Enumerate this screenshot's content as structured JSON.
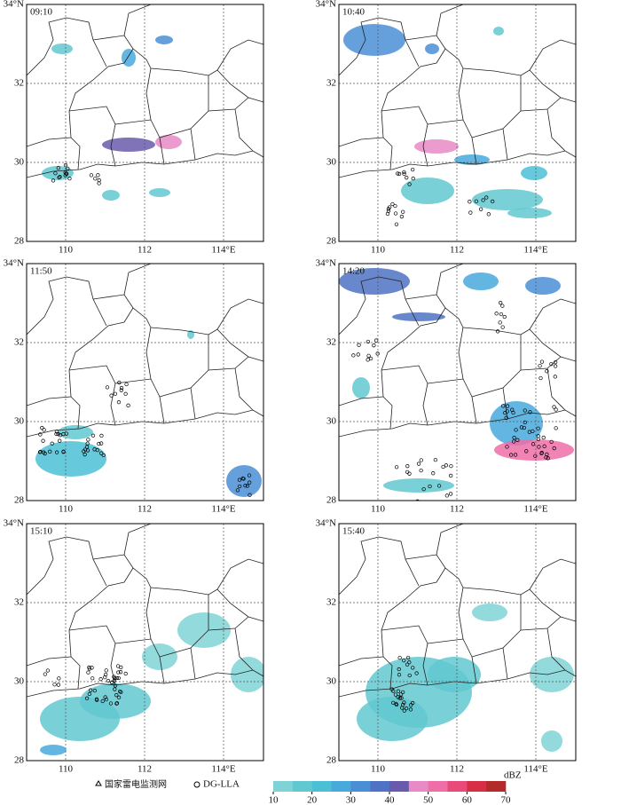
{
  "panels": [
    {
      "time": "09:10"
    },
    {
      "time": "10:40"
    },
    {
      "time": "11:50"
    },
    {
      "time": "14:20"
    },
    {
      "time": "15:10"
    },
    {
      "time": "15:40"
    }
  ],
  "lat_labels": [
    "34°N",
    "32",
    "30",
    "28"
  ],
  "lon_labels": [
    "110",
    "112",
    "114°E"
  ],
  "legend": {
    "cma": "国家雷电监测网",
    "dg": "DG-LLA"
  },
  "colorbar": {
    "ticks": [
      10,
      20,
      30,
      40,
      50,
      60,
      70
    ],
    "unit": "dBZ",
    "colors": [
      "#7fd3d6",
      "#62c8d0",
      "#4bbfd6",
      "#48a9dc",
      "#4a8fd6",
      "#4f72c4",
      "#6a5aac",
      "#e88ac6",
      "#ee6fa8",
      "#e84a7a",
      "#d62f45",
      "#b22a2a"
    ]
  }
}
